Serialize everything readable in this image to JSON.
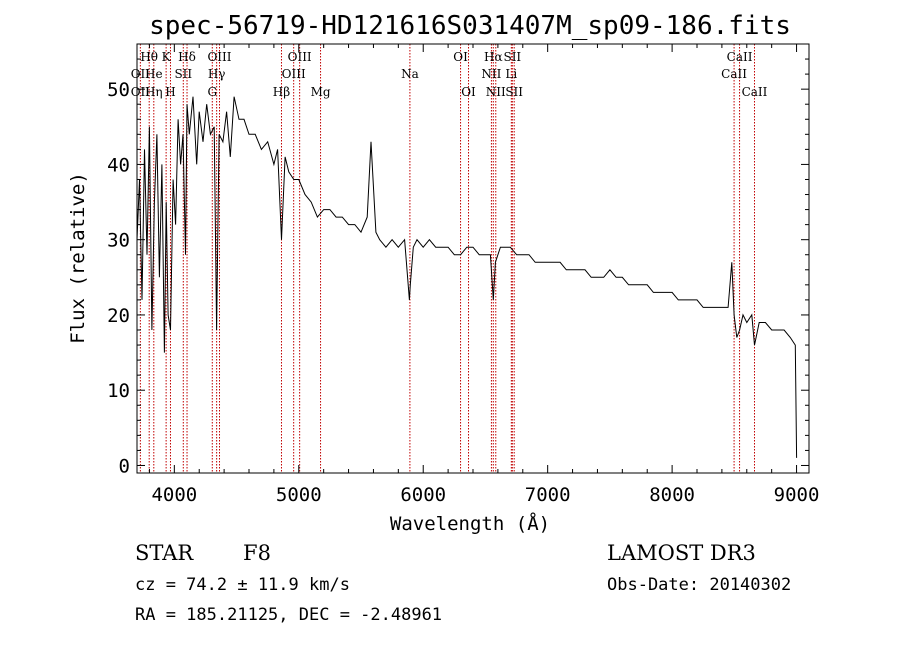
{
  "chart_data": {
    "type": "line",
    "title": "spec-56719-HD121616S031407M_sp09-186.fits",
    "xlabel": "Wavelength (Å)",
    "ylabel": "Flux (relative)",
    "xlim": [
      3700,
      9100
    ],
    "ylim": [
      -1,
      56
    ],
    "xticks": [
      4000,
      5000,
      6000,
      7000,
      8000,
      9000
    ],
    "xtick_labels": [
      "4000",
      "5000",
      "6000",
      "7000",
      "8000",
      "9000"
    ],
    "yticks": [
      0,
      10,
      20,
      30,
      40,
      50
    ],
    "ytick_labels": [
      "0",
      "10",
      "20",
      "30",
      "40",
      "50"
    ],
    "series": [
      {
        "name": "spectrum",
        "x": [
          3700,
          3720,
          3740,
          3760,
          3780,
          3800,
          3820,
          3840,
          3860,
          3880,
          3900,
          3920,
          3935,
          3950,
          3969,
          3990,
          4010,
          4030,
          4050,
          4070,
          4090,
          4102,
          4120,
          4150,
          4180,
          4200,
          4230,
          4260,
          4290,
          4320,
          4340,
          4360,
          4390,
          4420,
          4450,
          4480,
          4520,
          4560,
          4600,
          4650,
          4700,
          4750,
          4800,
          4830,
          4861,
          4890,
          4920,
          4960,
          5000,
          5050,
          5100,
          5150,
          5200,
          5250,
          5300,
          5350,
          5400,
          5450,
          5500,
          5550,
          5580,
          5620,
          5650,
          5700,
          5750,
          5800,
          5850,
          5889,
          5896,
          5920,
          5950,
          6000,
          6050,
          6100,
          6150,
          6200,
          6250,
          6300,
          6350,
          6400,
          6450,
          6500,
          6540,
          6563,
          6580,
          6620,
          6650,
          6700,
          6750,
          6800,
          6850,
          6900,
          6950,
          7000,
          7050,
          7100,
          7150,
          7200,
          7250,
          7300,
          7350,
          7400,
          7450,
          7500,
          7550,
          7600,
          7650,
          7700,
          7750,
          7800,
          7850,
          7900,
          7950,
          8000,
          8050,
          8100,
          8150,
          8200,
          8250,
          8300,
          8350,
          8400,
          8450,
          8480,
          8498,
          8520,
          8542,
          8570,
          8600,
          8640,
          8662,
          8700,
          8750,
          8800,
          8850,
          8900,
          8950,
          8990,
          9000
        ],
        "y": [
          30,
          38,
          22,
          42,
          28,
          45,
          18,
          35,
          44,
          25,
          40,
          15,
          35,
          20,
          18,
          38,
          32,
          46,
          40,
          44,
          28,
          48,
          44,
          49,
          40,
          47,
          43,
          48,
          44,
          45,
          18,
          44,
          43,
          47,
          41,
          49,
          46,
          46,
          44,
          44,
          42,
          43,
          40,
          42,
          30,
          41,
          39,
          38,
          38,
          36,
          35,
          33,
          34,
          34,
          33,
          33,
          32,
          32,
          31,
          33,
          43,
          31,
          30,
          29,
          30,
          29,
          30,
          22,
          24,
          29,
          30,
          29,
          30,
          29,
          29,
          29,
          28,
          28,
          29,
          29,
          28,
          28,
          28,
          22,
          27,
          29,
          29,
          29,
          28,
          28,
          28,
          27,
          27,
          27,
          27,
          27,
          26,
          26,
          26,
          26,
          25,
          25,
          25,
          26,
          25,
          25,
          24,
          24,
          24,
          24,
          23,
          23,
          23,
          23,
          22,
          22,
          22,
          22,
          21,
          21,
          21,
          21,
          21,
          27,
          20,
          17,
          18,
          20,
          19,
          20,
          16,
          19,
          19,
          18,
          18,
          18,
          17,
          16,
          1
        ]
      }
    ],
    "line_markers": [
      {
        "label": "Hθ",
        "wl": 3798,
        "row": 0
      },
      {
        "label": "OII",
        "wl": 3727,
        "row": 1
      },
      {
        "label": "OII",
        "wl": 3727,
        "row": 2
      },
      {
        "label": "He",
        "wl": 3835,
        "row": 1
      },
      {
        "label": "Hη",
        "wl": 3835,
        "row": 2
      },
      {
        "label": "K",
        "wl": 3934,
        "row": 0
      },
      {
        "label": "SII",
        "wl": 4072,
        "row": 1
      },
      {
        "label": "H",
        "wl": 3969,
        "row": 2
      },
      {
        "label": "Hδ",
        "wl": 4102,
        "row": 0
      },
      {
        "label": "OIII",
        "wl": 4363,
        "row": 0
      },
      {
        "label": "Hγ",
        "wl": 4340,
        "row": 1
      },
      {
        "label": "G",
        "wl": 4305,
        "row": 2
      },
      {
        "label": "Hβ",
        "wl": 4861,
        "row": 2
      },
      {
        "label": "OIII",
        "wl": 5007,
        "row": 0
      },
      {
        "label": "OIII",
        "wl": 4959,
        "row": 1
      },
      {
        "label": "Mg",
        "wl": 5175,
        "row": 2
      },
      {
        "label": "Na",
        "wl": 5893,
        "row": 1
      },
      {
        "label": "OI",
        "wl": 6300,
        "row": 0
      },
      {
        "label": "OI",
        "wl": 6364,
        "row": 2
      },
      {
        "label": "Hα",
        "wl": 6563,
        "row": 0
      },
      {
        "label": "SII",
        "wl": 6716,
        "row": 0
      },
      {
        "label": "NII",
        "wl": 6548,
        "row": 1
      },
      {
        "label": "Li",
        "wl": 6708,
        "row": 1
      },
      {
        "label": "NII",
        "wl": 6583,
        "row": 2
      },
      {
        "label": "SII",
        "wl": 6731,
        "row": 2
      },
      {
        "label": "CaII",
        "wl": 8542,
        "row": 0
      },
      {
        "label": "CaII",
        "wl": 8498,
        "row": 1
      },
      {
        "label": "CaII",
        "wl": 8662,
        "row": 2
      }
    ]
  },
  "info": {
    "class": "STAR",
    "subclass": "F8",
    "survey": "LAMOST DR3",
    "cz": "cz = 74.2 ± 11.9 km/s",
    "obs_date": "Obs-Date: 20140302",
    "coords": "RA = 185.21125, DEC =  -2.48961"
  },
  "colors": {
    "spectrum": "#000000",
    "marker": "#c00000",
    "axes": "#000000"
  }
}
